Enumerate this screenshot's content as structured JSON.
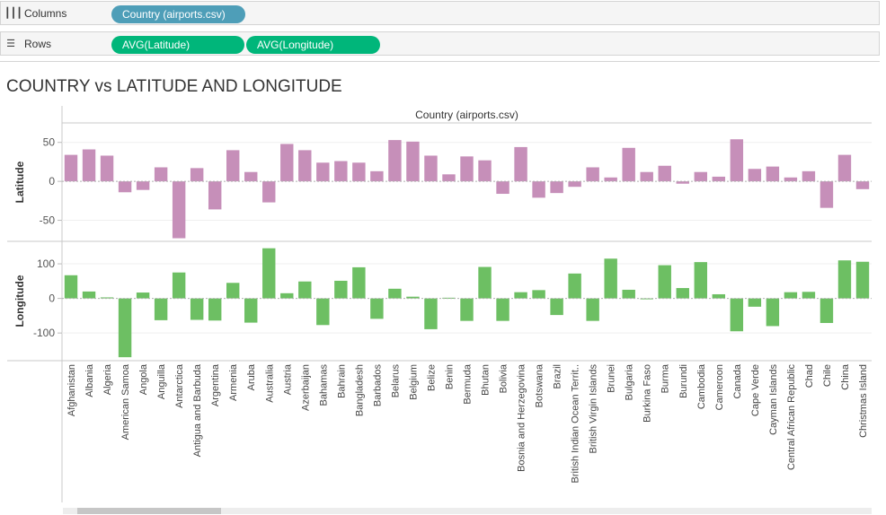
{
  "shelves": {
    "columns": {
      "label": "Columns",
      "icon": "columns-icon",
      "pills": [
        "Country (airports.csv)"
      ]
    },
    "rows": {
      "label": "Rows",
      "icon": "rows-icon",
      "pills": [
        "AVG(Latitude)",
        "AVG(Longitude)"
      ]
    }
  },
  "colors": {
    "latitude": "#c68fb9",
    "longitude": "#6dbf63",
    "columns_pill": "#4e9eb8",
    "rows_pill": "#00b67a"
  },
  "chart_data": {
    "type": "bar",
    "title": "COUNTRY vs LATITUDE AND LONGITUDE",
    "column_header": "Country (airports.csv)",
    "categories": [
      "Afghanistan",
      "Albania",
      "Algeria",
      "American Samoa",
      "Angola",
      "Anguilla",
      "Antarctica",
      "Antigua and Barbuda",
      "Argentina",
      "Armenia",
      "Aruba",
      "Australia",
      "Austria",
      "Azerbaijan",
      "Bahamas",
      "Bahrain",
      "Bangladesh",
      "Barbados",
      "Belarus",
      "Belgium",
      "Belize",
      "Benin",
      "Bermuda",
      "Bhutan",
      "Bolivia",
      "Bosnia and Herzegovina",
      "Botswana",
      "Brazil",
      "British Indian Ocean Territ..",
      "British Virgin Islands",
      "Brunei",
      "Bulgaria",
      "Burkina Faso",
      "Burma",
      "Burundi",
      "Cambodia",
      "Cameroon",
      "Canada",
      "Cape Verde",
      "Cayman Islands",
      "Central African Republic",
      "Chad",
      "Chile",
      "China",
      "Christmas Island"
    ],
    "series": [
      {
        "name": "Latitude",
        "ylabel": "Latitude",
        "ticks": [
          50,
          0,
          -50
        ],
        "ylim": [
          -77,
          75
        ],
        "values": [
          34,
          41,
          33,
          -14,
          -11,
          18,
          -73,
          17,
          -36,
          40,
          12,
          -27,
          48,
          40,
          24,
          26,
          24,
          13,
          53,
          51,
          33,
          9,
          32,
          27,
          -16,
          44,
          -21,
          -15,
          -7,
          18,
          5,
          43,
          12,
          20,
          -3,
          12,
          6,
          54,
          16,
          19,
          5,
          13,
          -34,
          34,
          -10
        ]
      },
      {
        "name": "Longitude",
        "ylabel": "Longitude",
        "ticks": [
          100,
          0,
          -100
        ],
        "ylim": [
          -180,
          165
        ],
        "values": [
          67,
          20,
          3,
          -170,
          17,
          -63,
          75,
          -62,
          -64,
          45,
          -70,
          145,
          15,
          49,
          -77,
          51,
          90,
          -59,
          28,
          5,
          -89,
          2,
          -65,
          91,
          -65,
          18,
          24,
          -48,
          72,
          -65,
          115,
          25,
          -2,
          96,
          30,
          105,
          12,
          -95,
          -24,
          -80,
          18,
          19,
          -71,
          110,
          106
        ]
      }
    ],
    "grid": true
  }
}
